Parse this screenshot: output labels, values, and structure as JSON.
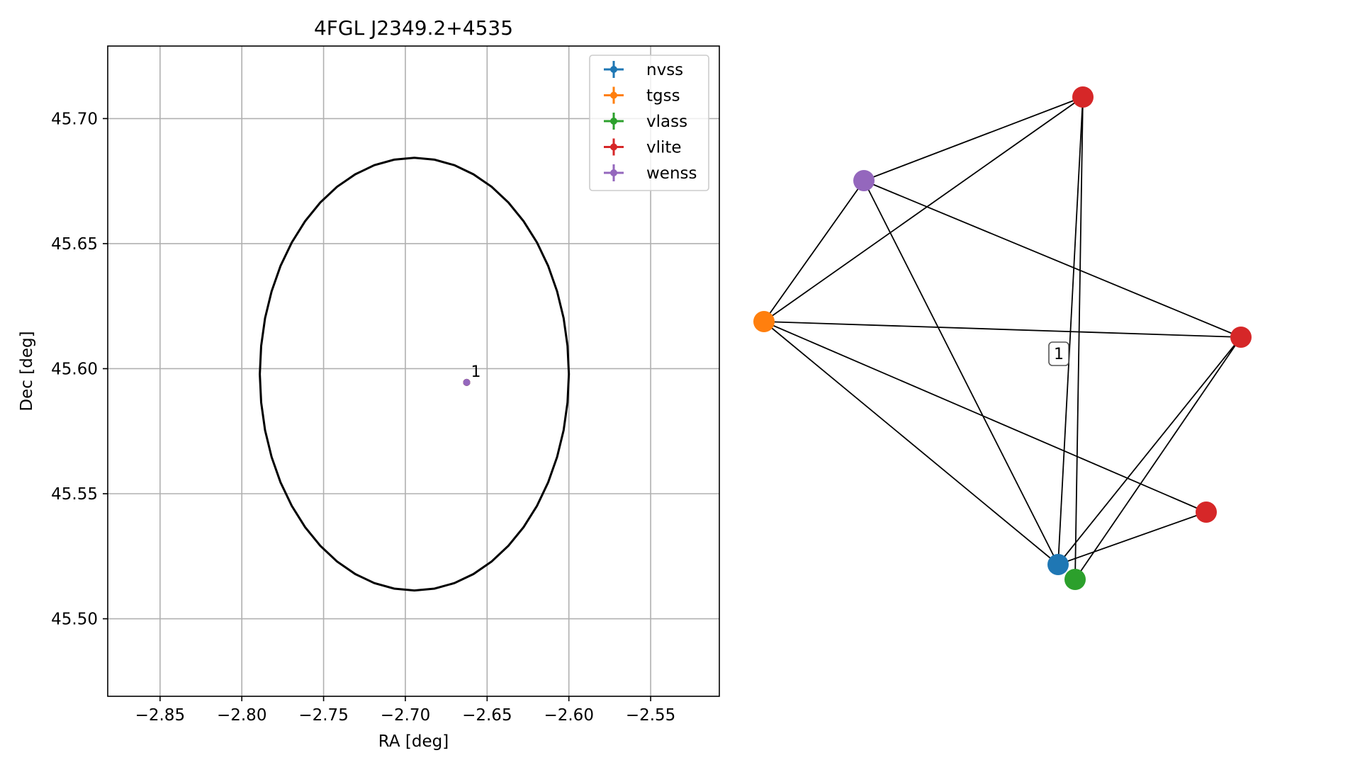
{
  "chart_data": [
    {
      "type": "scatter",
      "title": "4FGL J2349.2+4535",
      "xlabel": "RA [deg]",
      "ylabel": "Dec [deg]",
      "xlim": [
        -2.882,
        -2.508
      ],
      "ylim": [
        45.469,
        45.729
      ],
      "grid": true,
      "xticks": [
        -2.85,
        -2.8,
        -2.75,
        -2.7,
        -2.65,
        -2.6,
        -2.55
      ],
      "xtick_labels": [
        "−2.85",
        "−2.80",
        "−2.75",
        "−2.70",
        "−2.65",
        "−2.60",
        "−2.55"
      ],
      "yticks": [
        45.5,
        45.55,
        45.6,
        45.65,
        45.7
      ],
      "ytick_labels": [
        "45.50",
        "45.55",
        "45.60",
        "45.65",
        "45.70"
      ],
      "legend_position": "upper right",
      "series": [
        {
          "name": "nvss",
          "color": "#1f77b4",
          "points": [
            {
              "x": -2.6625,
              "y": 45.5945
            }
          ]
        },
        {
          "name": "tgss",
          "color": "#ff7f0e",
          "points": [
            {
              "x": -2.6625,
              "y": 45.5945
            }
          ]
        },
        {
          "name": "vlass",
          "color": "#2ca02c",
          "points": [
            {
              "x": -2.6625,
              "y": 45.5945
            }
          ]
        },
        {
          "name": "vlite",
          "color": "#d62728",
          "points": [
            {
              "x": -2.6625,
              "y": 45.5945
            }
          ]
        },
        {
          "name": "wenss",
          "color": "#9467bd",
          "points": [
            {
              "x": -2.6625,
              "y": 45.5945
            }
          ]
        }
      ],
      "annotations": [
        {
          "text": "1",
          "x": -2.6625,
          "y": 45.5945
        }
      ],
      "ellipse": {
        "center_x": -2.6945,
        "center_y": 45.5978,
        "semi_axis_x": 0.0945,
        "semi_axis_y": 0.0865,
        "color": "#000000"
      }
    },
    {
      "type": "network",
      "title": "",
      "node_colors": {
        "nvss": "#1f77b4",
        "tgss": "#ff7f0e",
        "vlass": "#2ca02c",
        "vlite": "#d62728",
        "wenss": "#9467bd"
      },
      "nodes": [
        {
          "id": "vlite_a",
          "survey": "vlite"
        },
        {
          "id": "wenss",
          "survey": "wenss"
        },
        {
          "id": "tgss",
          "survey": "tgss"
        },
        {
          "id": "vlite_b",
          "survey": "vlite"
        },
        {
          "id": "vlite_c",
          "survey": "vlite"
        },
        {
          "id": "nvss",
          "survey": "nvss"
        },
        {
          "id": "vlass",
          "survey": "vlass"
        }
      ],
      "edges": [
        [
          "wenss",
          "vlite_a"
        ],
        [
          "tgss",
          "vlite_a"
        ],
        [
          "nvss",
          "vlite_a"
        ],
        [
          "vlass",
          "vlite_a"
        ],
        [
          "wenss",
          "tgss"
        ],
        [
          "wenss",
          "vlite_b"
        ],
        [
          "wenss",
          "nvss"
        ],
        [
          "tgss",
          "vlite_b"
        ],
        [
          "tgss",
          "nvss"
        ],
        [
          "tgss",
          "vlite_c"
        ],
        [
          "nvss",
          "vlite_b"
        ],
        [
          "vlass",
          "vlite_b"
        ],
        [
          "nvss",
          "vlite_c"
        ]
      ],
      "cluster_label": "1"
    }
  ]
}
